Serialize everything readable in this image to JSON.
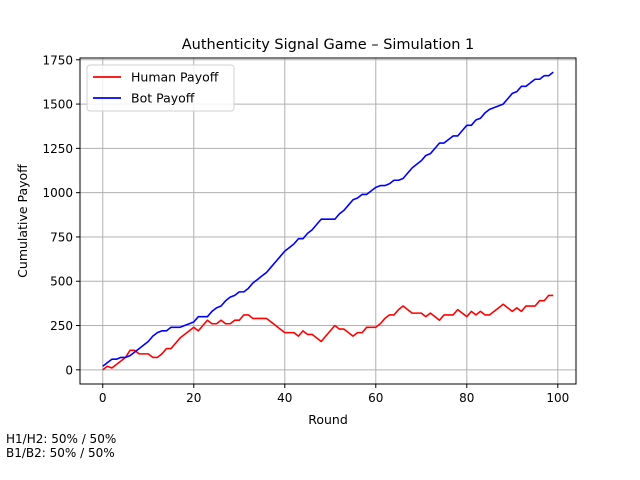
{
  "chart_data": {
    "type": "line",
    "title": "Authenticity Signal Game – Simulation 1",
    "xlabel": "Round",
    "ylabel": "Cumulative Payoff",
    "xlim": [
      -5,
      104
    ],
    "ylim": [
      -80,
      1760
    ],
    "xticks": [
      0,
      20,
      40,
      60,
      80,
      100
    ],
    "yticks": [
      0,
      250,
      500,
      750,
      1000,
      1250,
      1500,
      1750
    ],
    "grid": true,
    "legend_position": "top-left",
    "series": [
      {
        "name": "Human Payoff",
        "color": "#ff0000",
        "points": [
          [
            0,
            0
          ],
          [
            1,
            20
          ],
          [
            2,
            10
          ],
          [
            3,
            30
          ],
          [
            4,
            50
          ],
          [
            5,
            70
          ],
          [
            6,
            110
          ],
          [
            7,
            110
          ],
          [
            8,
            90
          ],
          [
            9,
            90
          ],
          [
            10,
            90
          ],
          [
            11,
            70
          ],
          [
            12,
            70
          ],
          [
            13,
            90
          ],
          [
            14,
            120
          ],
          [
            15,
            120
          ],
          [
            16,
            150
          ],
          [
            17,
            180
          ],
          [
            18,
            200
          ],
          [
            19,
            220
          ],
          [
            20,
            240
          ],
          [
            21,
            220
          ],
          [
            22,
            250
          ],
          [
            23,
            280
          ],
          [
            24,
            260
          ],
          [
            25,
            260
          ],
          [
            26,
            280
          ],
          [
            27,
            260
          ],
          [
            28,
            260
          ],
          [
            29,
            280
          ],
          [
            30,
            280
          ],
          [
            31,
            310
          ],
          [
            32,
            310
          ],
          [
            33,
            290
          ],
          [
            34,
            290
          ],
          [
            35,
            290
          ],
          [
            36,
            290
          ],
          [
            37,
            270
          ],
          [
            38,
            250
          ],
          [
            39,
            230
          ],
          [
            40,
            210
          ],
          [
            41,
            210
          ],
          [
            42,
            210
          ],
          [
            43,
            190
          ],
          [
            44,
            220
          ],
          [
            45,
            200
          ],
          [
            46,
            200
          ],
          [
            47,
            180
          ],
          [
            48,
            160
          ],
          [
            49,
            190
          ],
          [
            50,
            220
          ],
          [
            51,
            250
          ],
          [
            52,
            230
          ],
          [
            53,
            230
          ],
          [
            54,
            210
          ],
          [
            55,
            190
          ],
          [
            56,
            210
          ],
          [
            57,
            210
          ],
          [
            58,
            240
          ],
          [
            59,
            240
          ],
          [
            60,
            240
          ],
          [
            61,
            260
          ],
          [
            62,
            290
          ],
          [
            63,
            310
          ],
          [
            64,
            310
          ],
          [
            65,
            340
          ],
          [
            66,
            360
          ],
          [
            67,
            340
          ],
          [
            68,
            320
          ],
          [
            69,
            320
          ],
          [
            70,
            320
          ],
          [
            71,
            300
          ],
          [
            72,
            320
          ],
          [
            73,
            300
          ],
          [
            74,
            280
          ],
          [
            75,
            310
          ],
          [
            76,
            310
          ],
          [
            77,
            310
          ],
          [
            78,
            340
          ],
          [
            79,
            320
          ],
          [
            80,
            300
          ],
          [
            81,
            330
          ],
          [
            82,
            310
          ],
          [
            83,
            330
          ],
          [
            84,
            310
          ],
          [
            85,
            310
          ],
          [
            86,
            330
          ],
          [
            87,
            350
          ],
          [
            88,
            370
          ],
          [
            89,
            350
          ],
          [
            90,
            330
          ],
          [
            91,
            350
          ],
          [
            92,
            330
          ],
          [
            93,
            360
          ],
          [
            94,
            360
          ],
          [
            95,
            360
          ],
          [
            96,
            390
          ],
          [
            97,
            390
          ],
          [
            98,
            420
          ],
          [
            99,
            420
          ]
        ]
      },
      {
        "name": "Bot Payoff",
        "color": "#0000ff",
        "points": [
          [
            0,
            20
          ],
          [
            1,
            40
          ],
          [
            2,
            60
          ],
          [
            3,
            60
          ],
          [
            4,
            70
          ],
          [
            5,
            70
          ],
          [
            6,
            80
          ],
          [
            7,
            100
          ],
          [
            8,
            120
          ],
          [
            9,
            140
          ],
          [
            10,
            160
          ],
          [
            11,
            190
          ],
          [
            12,
            210
          ],
          [
            13,
            220
          ],
          [
            14,
            220
          ],
          [
            15,
            240
          ],
          [
            16,
            240
          ],
          [
            17,
            240
          ],
          [
            18,
            250
          ],
          [
            19,
            260
          ],
          [
            20,
            270
          ],
          [
            21,
            300
          ],
          [
            22,
            300
          ],
          [
            23,
            300
          ],
          [
            24,
            330
          ],
          [
            25,
            350
          ],
          [
            26,
            360
          ],
          [
            27,
            390
          ],
          [
            28,
            410
          ],
          [
            29,
            420
          ],
          [
            30,
            440
          ],
          [
            31,
            440
          ],
          [
            32,
            460
          ],
          [
            33,
            490
          ],
          [
            34,
            510
          ],
          [
            35,
            530
          ],
          [
            36,
            550
          ],
          [
            37,
            580
          ],
          [
            38,
            610
          ],
          [
            39,
            640
          ],
          [
            40,
            670
          ],
          [
            41,
            690
          ],
          [
            42,
            710
          ],
          [
            43,
            740
          ],
          [
            44,
            740
          ],
          [
            45,
            770
          ],
          [
            46,
            790
          ],
          [
            47,
            820
          ],
          [
            48,
            850
          ],
          [
            49,
            850
          ],
          [
            50,
            850
          ],
          [
            51,
            850
          ],
          [
            52,
            880
          ],
          [
            53,
            900
          ],
          [
            54,
            930
          ],
          [
            55,
            960
          ],
          [
            56,
            970
          ],
          [
            57,
            990
          ],
          [
            58,
            990
          ],
          [
            59,
            1010
          ],
          [
            60,
            1030
          ],
          [
            61,
            1040
          ],
          [
            62,
            1040
          ],
          [
            63,
            1050
          ],
          [
            64,
            1070
          ],
          [
            65,
            1070
          ],
          [
            66,
            1080
          ],
          [
            67,
            1110
          ],
          [
            68,
            1140
          ],
          [
            69,
            1160
          ],
          [
            70,
            1180
          ],
          [
            71,
            1210
          ],
          [
            72,
            1220
          ],
          [
            73,
            1250
          ],
          [
            74,
            1280
          ],
          [
            75,
            1280
          ],
          [
            76,
            1300
          ],
          [
            77,
            1320
          ],
          [
            78,
            1320
          ],
          [
            79,
            1350
          ],
          [
            80,
            1380
          ],
          [
            81,
            1380
          ],
          [
            82,
            1410
          ],
          [
            83,
            1420
          ],
          [
            84,
            1450
          ],
          [
            85,
            1470
          ],
          [
            86,
            1480
          ],
          [
            87,
            1490
          ],
          [
            88,
            1500
          ],
          [
            89,
            1530
          ],
          [
            90,
            1560
          ],
          [
            91,
            1570
          ],
          [
            92,
            1600
          ],
          [
            93,
            1600
          ],
          [
            94,
            1620
          ],
          [
            95,
            1640
          ],
          [
            96,
            1640
          ],
          [
            97,
            1660
          ],
          [
            98,
            1660
          ],
          [
            99,
            1680
          ]
        ]
      }
    ]
  },
  "notes": {
    "line1": "H1/H2: 50% / 50%",
    "line2": "B1/B2: 50% / 50%"
  }
}
